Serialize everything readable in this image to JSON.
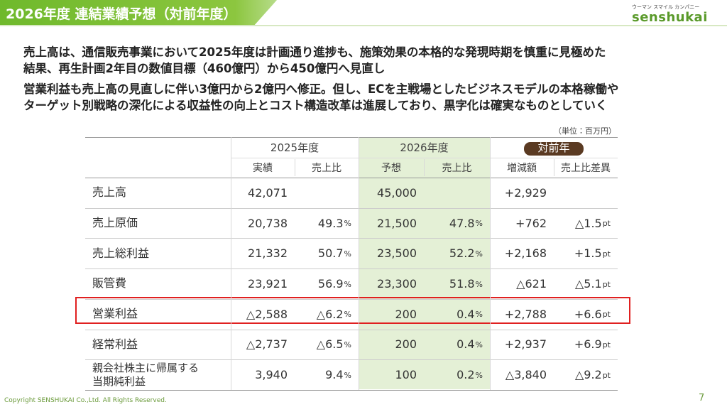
{
  "header": {
    "title": "2026年度 連結業績予想（対前年度）",
    "logo_tagline": "ウーマン スマイル カンパニー",
    "logo": "senshukai"
  },
  "summary": [
    [
      "売上高は、通信販売事業において2025年度は計画通り進捗も、施策効果の本格的な発現時期を慎重に見極めた",
      "結果、再生計画2年目の数値目標（460億円）から450億円へ見直し"
    ],
    [
      "営業利益も売上高の見直しに伴い3億円から2億円へ修正。但し、ECを主戦場としたビジネスモデルの本格稼働や",
      "ターゲット別戦略の深化による収益性の向上とコスト構造改革は進展しており、黒字化は確実なものとしていく"
    ]
  ],
  "table": {
    "unit_note": "（単位：百万円）",
    "groups": [
      "2025年度",
      "2026年度",
      "対前年"
    ],
    "columns": [
      "実績",
      "売上比",
      "予想",
      "売上比",
      "増減額",
      "売上比差異"
    ],
    "rows": [
      {
        "label": [
          "売上高"
        ],
        "cells": [
          "42,071",
          null,
          "45,000",
          null,
          "+2,929",
          null
        ]
      },
      {
        "label": [
          "売上原価"
        ],
        "cells": [
          "20,738",
          [
            "49.3",
            "%"
          ],
          "21,500",
          [
            "47.8",
            "%"
          ],
          "+762",
          [
            "△1.5",
            "pt"
          ]
        ]
      },
      {
        "label": [
          "売上総利益"
        ],
        "cells": [
          "21,332",
          [
            "50.7",
            "%"
          ],
          "23,500",
          [
            "52.2",
            "%"
          ],
          "+2,168",
          [
            "+1.5",
            "pt"
          ]
        ]
      },
      {
        "label": [
          "販管費"
        ],
        "cells": [
          "23,921",
          [
            "56.9",
            "%"
          ],
          "23,300",
          [
            "51.8",
            "%"
          ],
          "△621",
          [
            "△5.1",
            "pt"
          ]
        ]
      },
      {
        "label": [
          "営業利益"
        ],
        "cells": [
          "△2,588",
          [
            "△6.2",
            "%"
          ],
          "200",
          [
            "0.4",
            "%"
          ],
          "+2,788",
          [
            "+6.6",
            "pt"
          ]
        ]
      },
      {
        "label": [
          "経常利益"
        ],
        "cells": [
          "△2,737",
          [
            "△6.5",
            "%"
          ],
          "200",
          [
            "0.4",
            "%"
          ],
          "+2,937",
          [
            "+6.9",
            "pt"
          ]
        ]
      },
      {
        "label": [
          "親会社株主に帰属する",
          "当期純利益"
        ],
        "cells": [
          "3,940",
          [
            "9.4",
            "%"
          ],
          "100",
          [
            "0.2",
            "%"
          ],
          "△3,840",
          [
            "△9.2",
            "pt"
          ]
        ]
      }
    ]
  },
  "footer": {
    "copyright": "Copyright SENSHUKAI Co.,Ltd. All Rights Reserved.",
    "page": "7"
  }
}
